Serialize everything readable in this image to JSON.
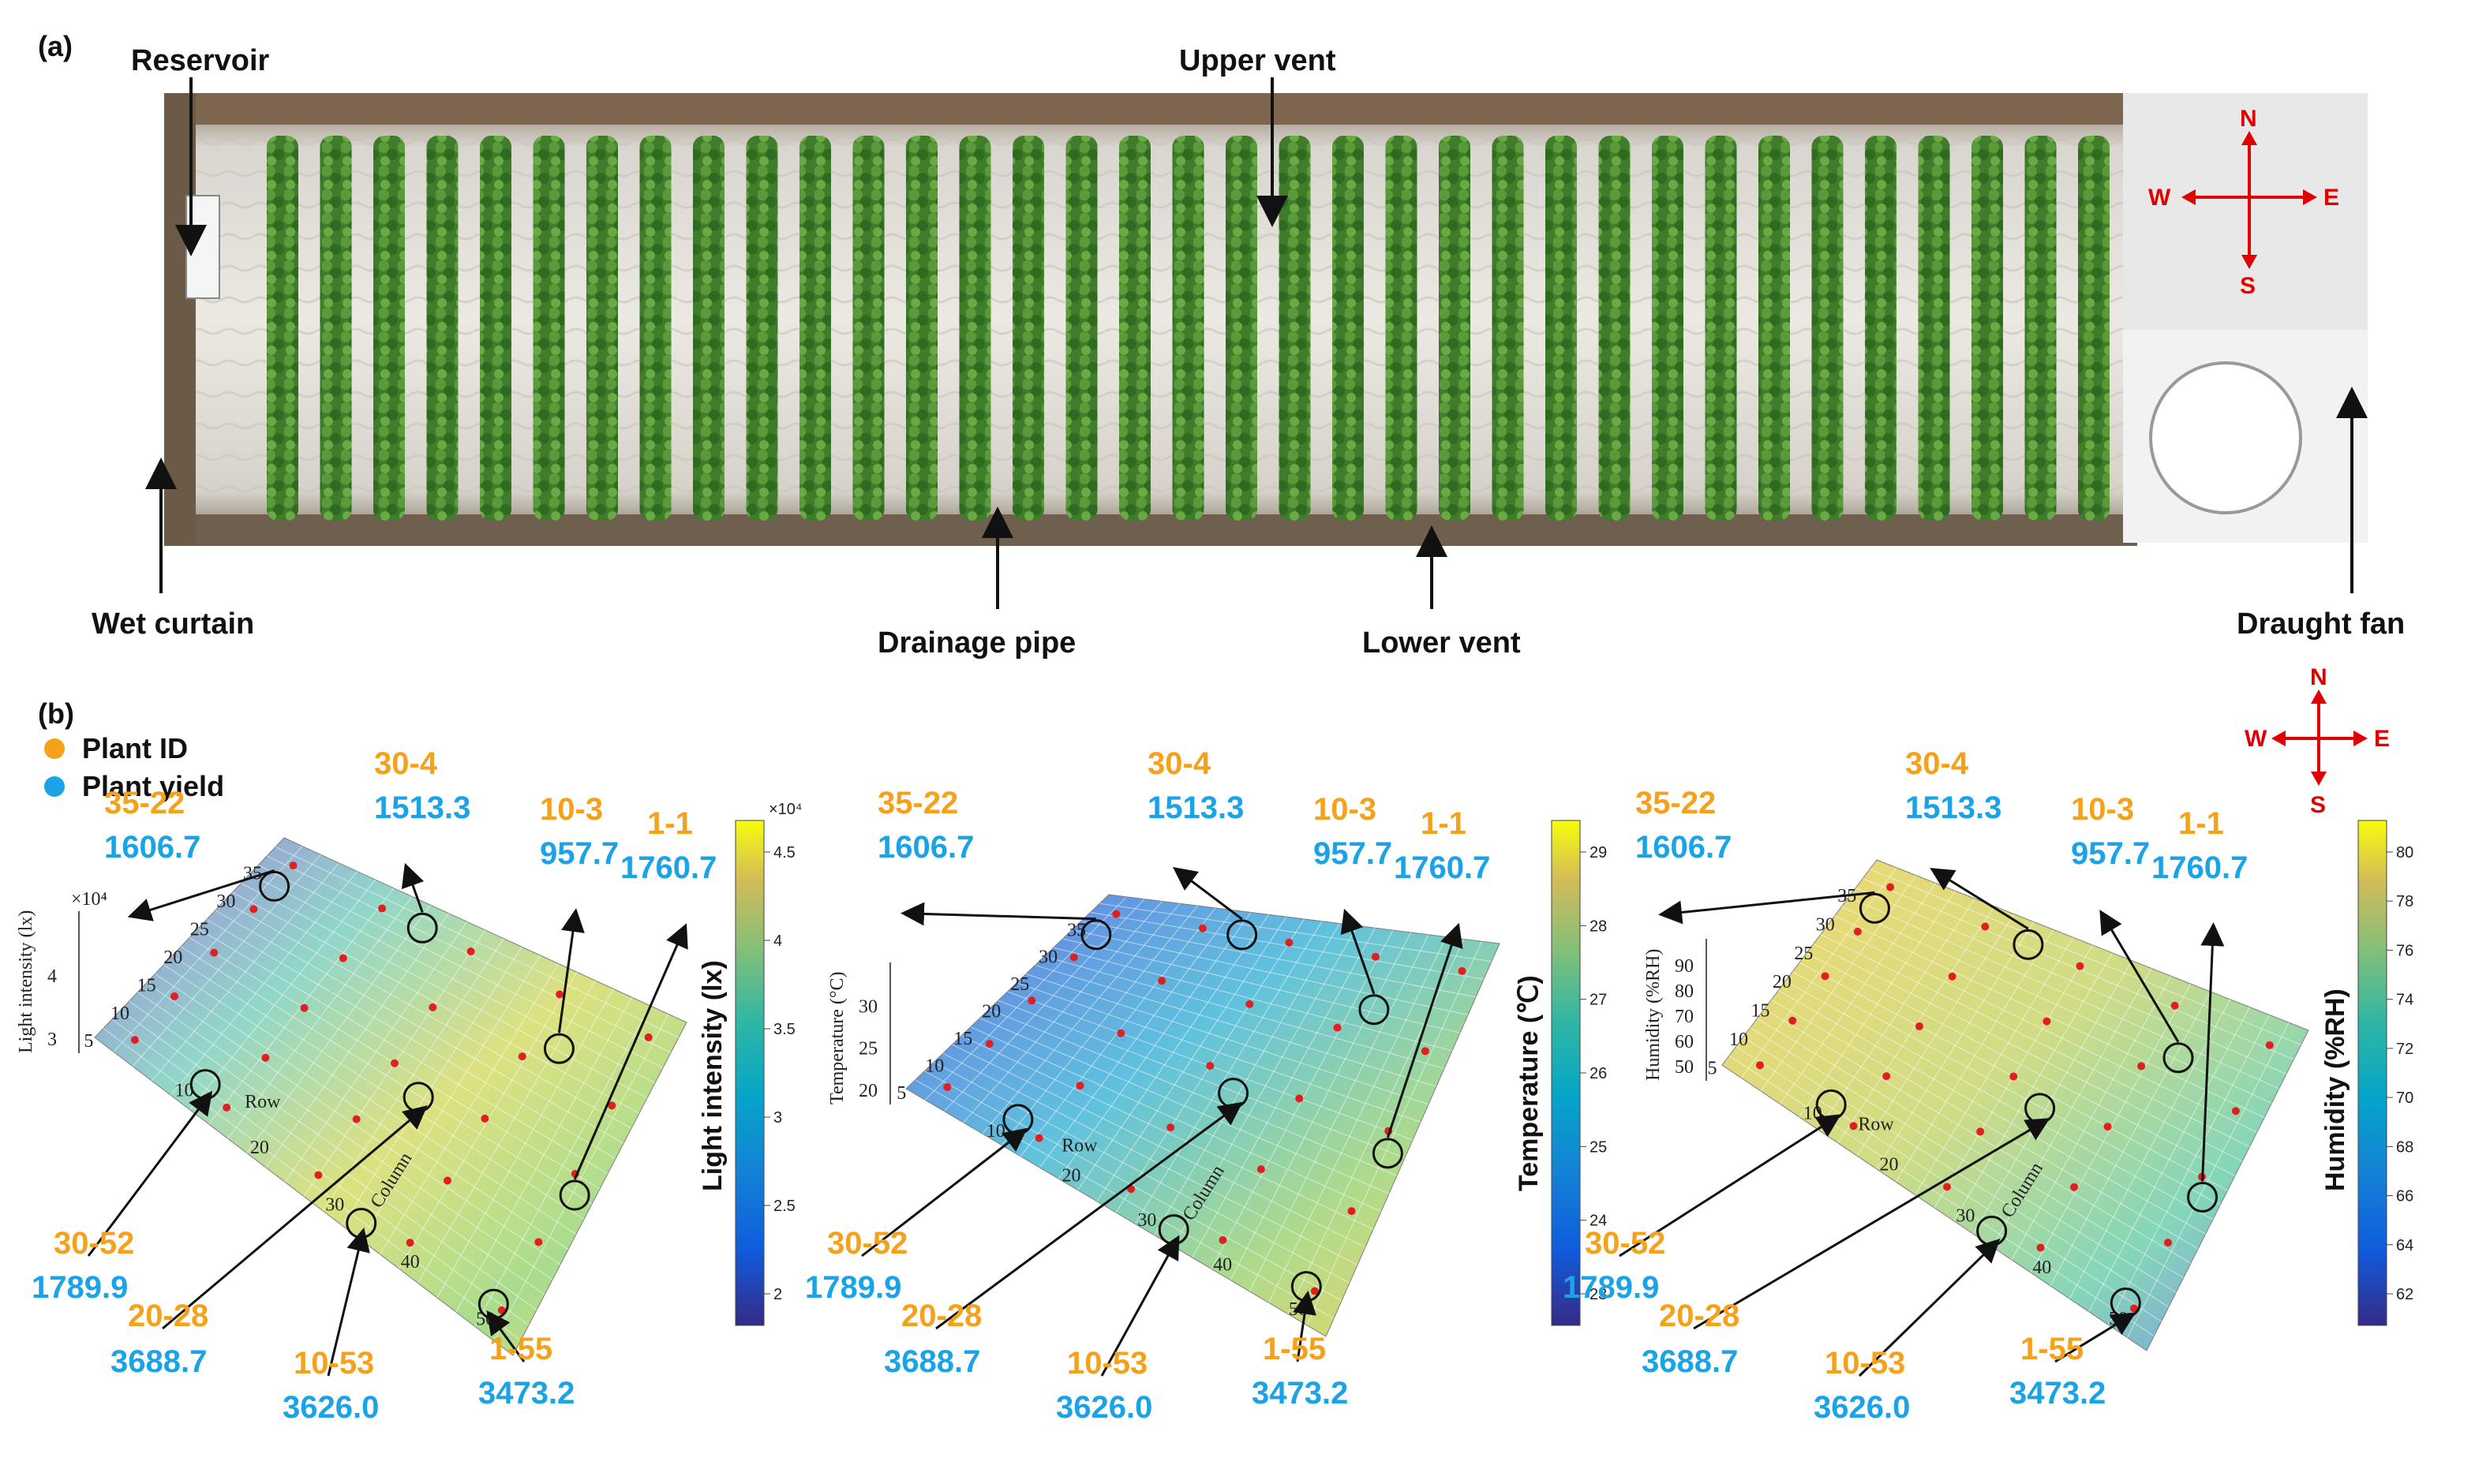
{
  "panel_a": {
    "label": "(a)",
    "annotations": {
      "reservoir": "Reservoir",
      "upper_vent": "Upper vent",
      "wet_curtain": "Wet curtain",
      "drainage_pipe": "Drainage pipe",
      "lower_vent": "Lower vent",
      "draught_fan": "Draught fan"
    },
    "compass": {
      "n": "N",
      "s": "S",
      "w": "W",
      "e": "E"
    }
  },
  "panel_b": {
    "label": "(b)",
    "legend": {
      "plant_id": "Plant ID",
      "plant_yield": "Plant yield"
    },
    "compass": {
      "n": "N",
      "s": "S",
      "w": "W",
      "e": "E"
    },
    "colors": {
      "plant_id": "#f5a21a",
      "plant_yield": "#1aa3e6",
      "marker": "#e02020",
      "arrow": "#111111",
      "compass": "#e00000"
    },
    "plants": [
      {
        "id": "35-22",
        "yield": "1606.7"
      },
      {
        "id": "30-4",
        "yield": "1513.3"
      },
      {
        "id": "10-3",
        "yield": "957.7"
      },
      {
        "id": "1-1",
        "yield": "1760.7"
      },
      {
        "id": "30-52",
        "yield": "1789.9"
      },
      {
        "id": "20-28",
        "yield": "3688.7"
      },
      {
        "id": "10-53",
        "yield": "3626.0"
      },
      {
        "id": "1-55",
        "yield": "3473.2"
      }
    ],
    "plots": [
      {
        "zlabel": "Light intensity (lx)",
        "zexp": "×10⁴",
        "zticks": [
          "3",
          "4"
        ],
        "colorbar_title": "Light intensity (lx)",
        "colorbar_exp": "×10⁴",
        "colorbar_ticks": [
          "4.5",
          "4",
          "3.5",
          "3",
          "2.5",
          "2"
        ]
      },
      {
        "zlabel": "Temperature (°C)",
        "zexp": "",
        "zticks": [
          "20",
          "25",
          "30"
        ],
        "colorbar_title": "Temperature (℃)",
        "colorbar_exp": "",
        "colorbar_ticks": [
          "29",
          "28",
          "27",
          "26",
          "25",
          "24",
          "23"
        ]
      },
      {
        "zlabel": "Humidity (%RH)",
        "zexp": "",
        "zticks": [
          "50",
          "60",
          "70",
          "80",
          "90"
        ],
        "colorbar_title": "Humidity (%RH)",
        "colorbar_exp": "",
        "colorbar_ticks": [
          "80",
          "78",
          "76",
          "74",
          "72",
          "70",
          "68",
          "66",
          "64",
          "62"
        ]
      }
    ],
    "axes": {
      "row_label": "Row",
      "column_label": "Column",
      "row_ticks": [
        "35",
        "30",
        "25",
        "20",
        "15",
        "10",
        "5"
      ],
      "column_ticks": [
        "10",
        "20",
        "30",
        "40",
        "50"
      ]
    }
  }
}
